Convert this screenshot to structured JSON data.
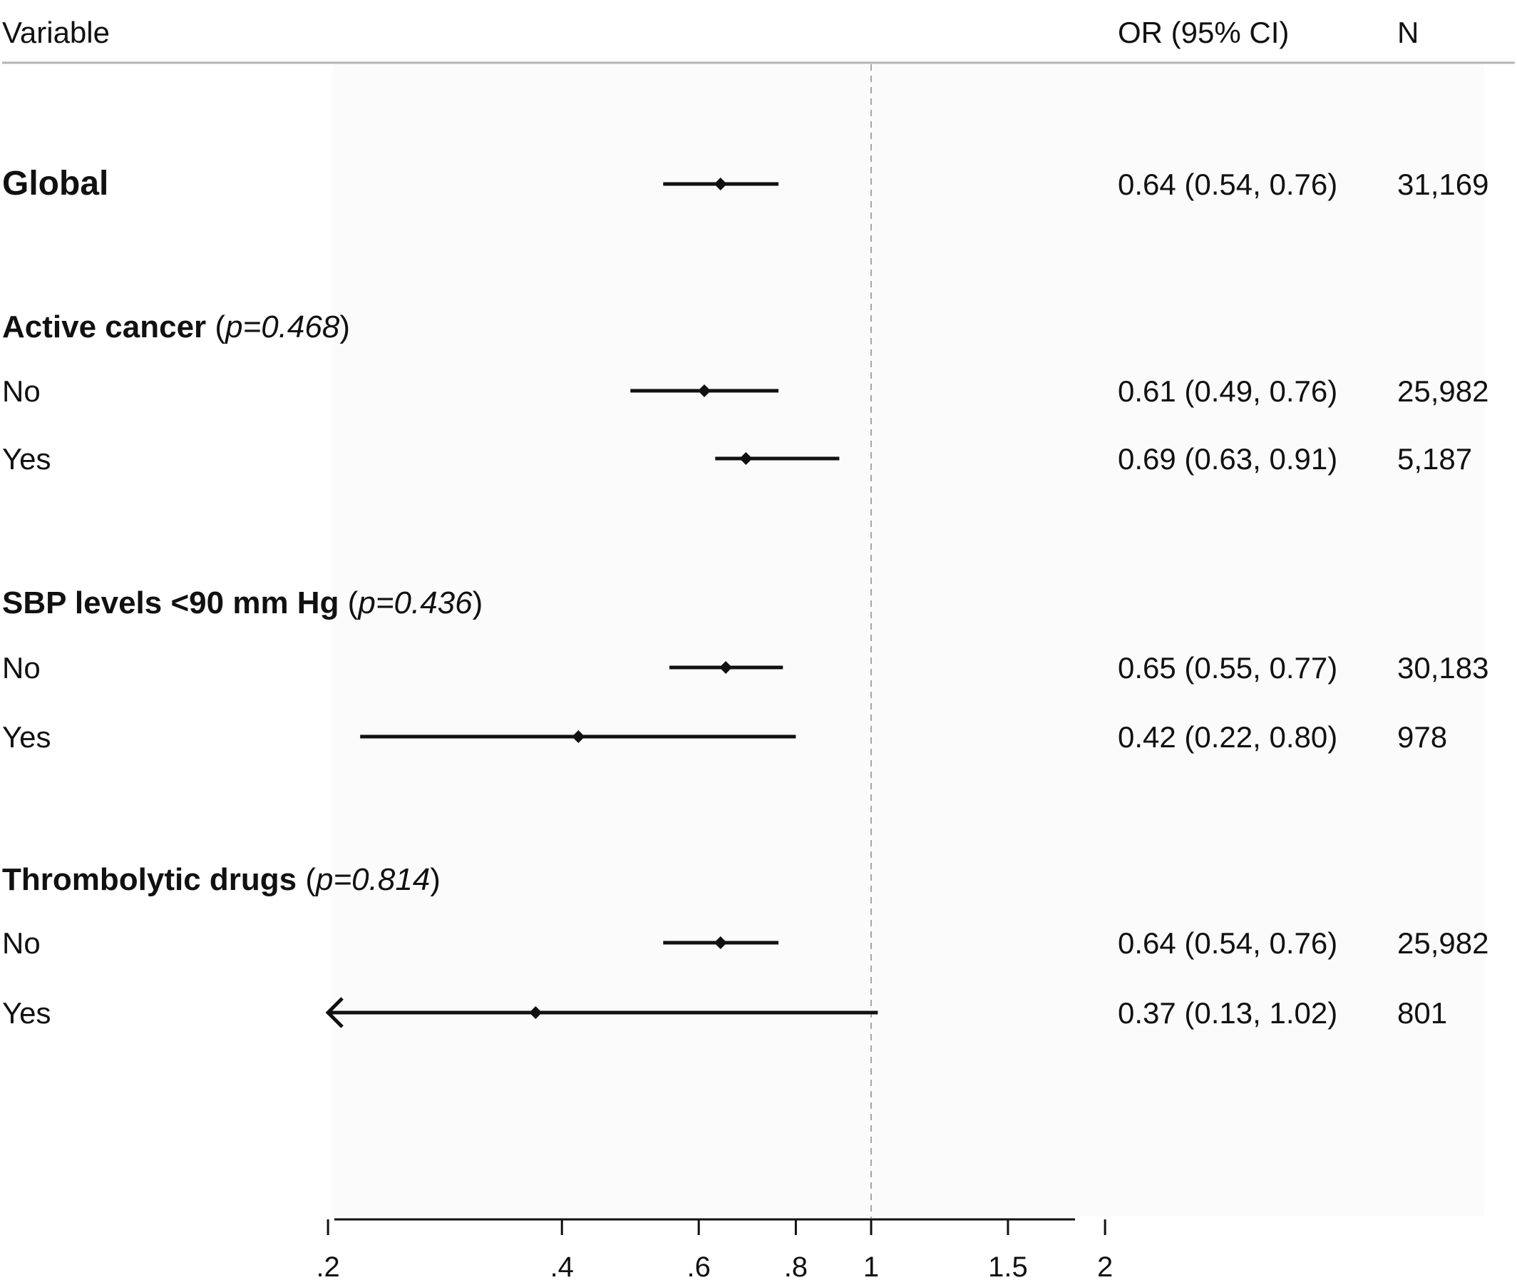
{
  "headers": {
    "variable": "Variable",
    "or": "OR (95% CI)",
    "n": "N"
  },
  "chart_data": {
    "type": "forest",
    "xscale": "log",
    "reference_line": 1,
    "xlim": [
      0.2,
      2
    ],
    "ticks": [
      {
        "value": 0.2,
        "label": ".2"
      },
      {
        "value": 0.4,
        "label": ".4"
      },
      {
        "value": 0.6,
        "label": ".6"
      },
      {
        "value": 0.8,
        "label": ".8"
      },
      {
        "value": 1,
        "label": "1"
      },
      {
        "value": 1.5,
        "label": "1.5"
      },
      {
        "value": 2,
        "label": "2"
      }
    ],
    "rows": [
      {
        "kind": "global",
        "label": "Global",
        "or": 0.64,
        "lo": 0.54,
        "hi": 0.76,
        "text": "0.64 (0.54, 0.76)",
        "n": "31,169"
      },
      {
        "kind": "group",
        "label": "Active cancer",
        "p_text": "p=0.468"
      },
      {
        "kind": "item",
        "label": "No",
        "or": 0.61,
        "lo": 0.49,
        "hi": 0.76,
        "text": "0.61 (0.49, 0.76)",
        "n": "25,982"
      },
      {
        "kind": "item",
        "label": "Yes",
        "or": 0.69,
        "lo": 0.63,
        "hi": 0.91,
        "text": "0.69 (0.63, 0.91)",
        "n": "5,187"
      },
      {
        "kind": "group",
        "label": "SBP levels <90 mm Hg",
        "p_text": "p=0.436"
      },
      {
        "kind": "item",
        "label": "No",
        "or": 0.65,
        "lo": 0.55,
        "hi": 0.77,
        "text": "0.65 (0.55, 0.77)",
        "n": "30,183"
      },
      {
        "kind": "item",
        "label": "Yes",
        "or": 0.42,
        "lo": 0.22,
        "hi": 0.8,
        "text": "0.42 (0.22, 0.80)",
        "n": "978"
      },
      {
        "kind": "group",
        "label": "Thrombolytic drugs",
        "p_text": "p=0.814"
      },
      {
        "kind": "item",
        "label": "No",
        "or": 0.64,
        "lo": 0.54,
        "hi": 0.76,
        "text": "0.64 (0.54, 0.76)",
        "n": "25,982"
      },
      {
        "kind": "item",
        "label": "Yes",
        "or": 0.37,
        "lo": 0.13,
        "hi": 1.02,
        "text": "0.37 (0.13, 1.02)",
        "n": "801",
        "truncated_low": true
      }
    ]
  }
}
